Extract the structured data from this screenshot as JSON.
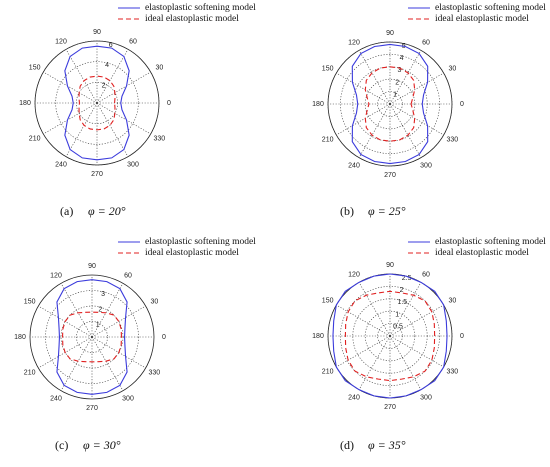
{
  "chart_data": [
    {
      "type": "polar",
      "label": "(a)",
      "caption": "φ = 20°",
      "rlim": [
        0,
        6
      ],
      "rticks": [
        2,
        4,
        6
      ],
      "thetaticks": [
        0,
        30,
        60,
        90,
        120,
        150,
        180,
        210,
        240,
        270,
        300,
        330
      ],
      "theta": [
        0,
        15,
        30,
        45,
        60,
        75,
        90,
        105,
        120,
        135,
        150,
        165,
        180,
        195,
        210,
        225,
        240,
        255,
        270,
        285,
        300,
        315,
        330,
        345
      ],
      "series": [
        {
          "name": "elastoplastic softening model",
          "color": "#3b3bdc",
          "dash": "solid",
          "values": [
            2.3,
            2.5,
            3.3,
            4.4,
            5.2,
            5.5,
            5.5,
            5.5,
            5.2,
            4.4,
            3.3,
            2.5,
            2.3,
            2.5,
            3.3,
            4.4,
            5.2,
            5.5,
            5.5,
            5.5,
            5.2,
            4.4,
            3.3,
            2.5
          ]
        },
        {
          "name": "ideal elastoplastic model",
          "color": "#e02020",
          "dash": "dashed",
          "values": [
            1.7,
            1.8,
            2.0,
            2.3,
            2.5,
            2.6,
            2.6,
            2.6,
            2.5,
            2.3,
            2.0,
            1.8,
            1.7,
            1.8,
            2.0,
            2.3,
            2.5,
            2.6,
            2.6,
            2.6,
            2.5,
            2.3,
            2.0,
            1.8
          ]
        }
      ]
    },
    {
      "type": "polar",
      "label": "(b)",
      "caption": "φ = 25°",
      "rlim": [
        0,
        5
      ],
      "rticks": [
        1,
        2,
        3,
        4,
        5
      ],
      "thetaticks": [
        0,
        30,
        60,
        90,
        120,
        150,
        180,
        210,
        240,
        270,
        300,
        330
      ],
      "theta": [
        0,
        15,
        30,
        45,
        60,
        75,
        90,
        105,
        120,
        135,
        150,
        165,
        180,
        195,
        210,
        225,
        240,
        255,
        270,
        285,
        300,
        315,
        330,
        345
      ],
      "series": [
        {
          "name": "elastoplastic softening model",
          "color": "#3b3bdc",
          "dash": "solid",
          "values": [
            2.6,
            2.8,
            3.5,
            4.3,
            4.7,
            4.8,
            4.8,
            4.8,
            4.7,
            4.3,
            3.5,
            2.8,
            2.6,
            2.8,
            3.5,
            4.3,
            4.7,
            4.8,
            4.8,
            4.8,
            4.7,
            4.3,
            3.5,
            2.8
          ]
        },
        {
          "name": "ideal elastoplastic model",
          "color": "#e02020",
          "dash": "dashed",
          "values": [
            1.7,
            1.9,
            2.3,
            2.7,
            2.9,
            3.0,
            3.0,
            3.0,
            2.9,
            2.7,
            2.3,
            1.9,
            1.7,
            1.9,
            2.3,
            2.7,
            2.9,
            3.0,
            3.0,
            3.0,
            2.9,
            2.7,
            2.3,
            1.9
          ]
        }
      ]
    },
    {
      "type": "polar",
      "label": "(c)",
      "caption": "φ = 30°",
      "rlim": [
        0,
        4
      ],
      "rticks": [
        1,
        2,
        3
      ],
      "thetaticks": [
        0,
        30,
        60,
        90,
        120,
        150,
        180,
        210,
        240,
        270,
        300,
        330
      ],
      "theta": [
        0,
        15,
        30,
        45,
        60,
        75,
        90,
        105,
        120,
        135,
        150,
        165,
        180,
        195,
        210,
        225,
        240,
        255,
        270,
        285,
        300,
        315,
        330,
        345
      ],
      "series": [
        {
          "name": "elastoplastic softening model",
          "color": "#3b3bdc",
          "dash": "solid",
          "values": [
            2.1,
            2.2,
            2.5,
            3.2,
            3.6,
            3.7,
            3.7,
            3.7,
            3.6,
            3.2,
            2.5,
            2.2,
            2.1,
            2.2,
            2.5,
            3.2,
            3.6,
            3.7,
            3.7,
            3.7,
            3.6,
            3.2,
            2.5,
            2.2
          ]
        },
        {
          "name": "ideal elastoplastic model",
          "color": "#e02020",
          "dash": "dashed",
          "values": [
            1.9,
            1.95,
            2.0,
            2.0,
            1.8,
            1.65,
            1.6,
            1.65,
            1.8,
            2.0,
            2.0,
            1.95,
            1.9,
            1.95,
            2.0,
            2.0,
            1.8,
            1.65,
            1.6,
            1.65,
            1.8,
            2.0,
            2.0,
            1.95
          ]
        }
      ]
    },
    {
      "type": "polar",
      "label": "(d)",
      "caption": "φ = 35°",
      "rlim": [
        0,
        2.5
      ],
      "rticks": [
        0.5,
        1,
        1.5,
        2,
        2.5
      ],
      "thetaticks": [
        0,
        30,
        60,
        90,
        120,
        150,
        180,
        210,
        240,
        270,
        300,
        330
      ],
      "theta": [
        0,
        15,
        30,
        45,
        60,
        75,
        90,
        105,
        120,
        135,
        150,
        165,
        180,
        195,
        210,
        225,
        240,
        255,
        270,
        285,
        300,
        315,
        330,
        345
      ],
      "series": [
        {
          "name": "elastoplastic softening model",
          "color": "#3b3bdc",
          "dash": "solid",
          "values": [
            2.3,
            2.35,
            2.5,
            2.55,
            2.5,
            2.5,
            2.5,
            2.5,
            2.5,
            2.55,
            2.5,
            2.35,
            2.3,
            2.35,
            2.5,
            2.55,
            2.5,
            2.5,
            2.5,
            2.5,
            2.5,
            2.55,
            2.5,
            2.35
          ]
        },
        {
          "name": "ideal elastoplastic model",
          "color": "#e02020",
          "dash": "dashed",
          "values": [
            1.8,
            1.85,
            1.95,
            2.0,
            1.9,
            1.8,
            1.8,
            1.8,
            1.9,
            2.0,
            1.95,
            1.85,
            1.8,
            1.85,
            1.95,
            2.0,
            1.9,
            1.8,
            1.8,
            1.8,
            1.9,
            2.0,
            1.95,
            1.85
          ]
        }
      ]
    }
  ]
}
